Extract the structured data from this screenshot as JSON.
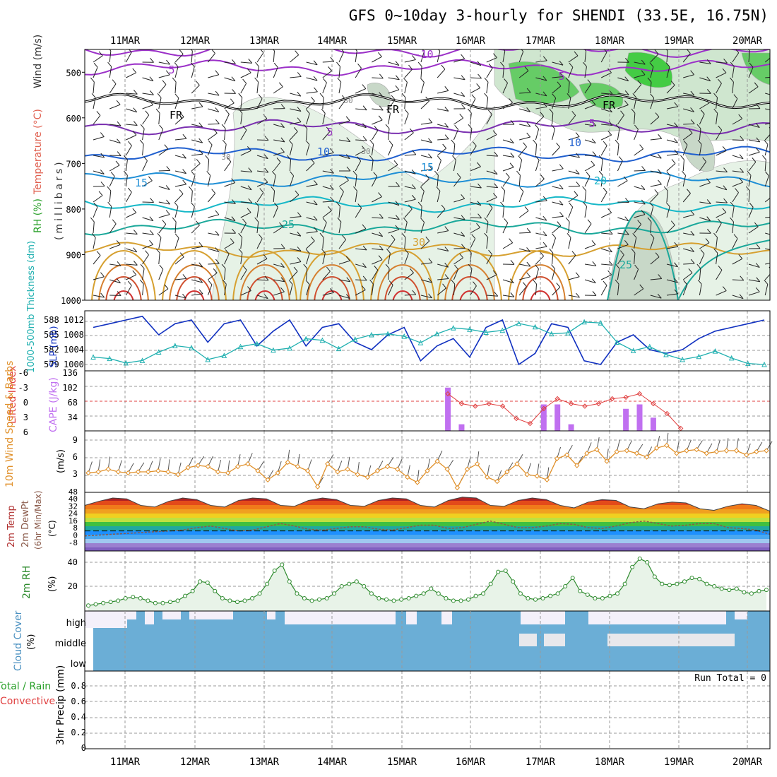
{
  "title": "GFS 0~10day 3-hourly for SHENDI (33.5E, 16.75N)",
  "dates": [
    "11MAR",
    "12MAR",
    "13MAR",
    "14MAR",
    "15MAR",
    "16MAR",
    "17MAR",
    "18MAR",
    "19MAR",
    "20MAR"
  ],
  "colors": {
    "rh_green": "#33cc33",
    "temp_red": "#e03030",
    "wind_orange": "#e0902a",
    "slp_blue": "#1030c0",
    "thick_cyan": "#20b0b0",
    "cape_purple": "#c070f0",
    "li_red": "#e04040",
    "rh2m_green": "#2e8b2e",
    "cloud_blue": "#6baed6",
    "dewpt_brown": "#8a5a4a"
  },
  "chart_data": [
    {
      "type": "heatmap",
      "panel": "upper-air",
      "ylabel_parts": [
        "RH (%)",
        "Temperature (°C)",
        "Wind (m/s)",
        "(millibars)"
      ],
      "yticks": [
        500,
        600,
        700,
        800,
        900,
        1000
      ],
      "ylim": [
        450,
        1000
      ],
      "contour_labels": [
        "-10",
        "5",
        "5",
        "FR",
        "FR",
        "FR",
        "5",
        "5",
        "10",
        "10",
        "15",
        "15",
        "20",
        "25",
        "25",
        "30",
        "30",
        "30",
        "30"
      ],
      "isotherms": [
        {
          "label": "-10",
          "p": 450
        },
        {
          "label": "-5",
          "p": 490
        },
        {
          "label": "0 (FR)",
          "p": 565
        },
        {
          "label": "5",
          "p": 620
        },
        {
          "label": "10",
          "p": 680
        },
        {
          "label": "15",
          "p": 735
        },
        {
          "label": "20",
          "p": 790
        },
        {
          "label": "25",
          "p": 840
        },
        {
          "label": "30",
          "p": 890
        }
      ]
    },
    {
      "type": "line",
      "panel": "slp-thickness",
      "ylabel_thickness": "1000-500mb Thickness (dm)",
      "ylabel_slp": "SLP (mb)",
      "thickness_ticks": [
        "588",
        "585",
        "582",
        "579"
      ],
      "slp_ticks": [
        "1012",
        "1008",
        "1004",
        "1000"
      ],
      "series": [
        {
          "name": "SLP (mb)",
          "values": [
            1010,
            1011,
            1012,
            1013,
            1008,
            1011,
            1012,
            1006,
            1011,
            1012,
            1005,
            1009,
            1012,
            1005,
            1010,
            1011,
            1006,
            1004,
            1008,
            1010,
            1001,
            1005,
            1007,
            1002,
            1010,
            1012,
            1000,
            1003,
            1011,
            1010,
            1001,
            1000,
            1006,
            1008,
            1004,
            1003,
            1004,
            1007,
            1009,
            1010,
            1011,
            1012
          ]
        },
        {
          "name": "Thickness (dm)",
          "values": [
            580.5,
            580.2,
            579.3,
            579.8,
            581.5,
            582.8,
            582.4,
            580.0,
            580.8,
            582.6,
            583.2,
            581.9,
            582.3,
            584.2,
            583.9,
            582.2,
            584.1,
            585.0,
            585.2,
            584.7,
            583.4,
            585.2,
            586.4,
            586.1,
            585.5,
            585.9,
            587.3,
            586.6,
            585.2,
            585.4,
            587.6,
            587.4,
            583.5,
            581.8,
            582.6,
            581.0,
            580.0,
            580.6,
            581.7,
            580.3,
            579.2,
            579.0
          ]
        }
      ]
    },
    {
      "type": "bar",
      "panel": "cape-li",
      "ylabel_li": "Lifted Index",
      "ylabel_cape": "CAPE (J/kg)",
      "li_ticks": [
        "-6",
        "-3",
        "0",
        "3",
        "6"
      ],
      "cape_ticks": [
        "136",
        "102",
        "68",
        "34"
      ],
      "cape_values": [
        0,
        0,
        0,
        0,
        0,
        0,
        0,
        0,
        0,
        0,
        0,
        0,
        0,
        0,
        0,
        0,
        0,
        0,
        0,
        0,
        0,
        0,
        0,
        0,
        0,
        0,
        98,
        15,
        0,
        0,
        0,
        0,
        0,
        60,
        60,
        15,
        0,
        0,
        0,
        50,
        60,
        30,
        0,
        0,
        0,
        0,
        0,
        0,
        0,
        0
      ],
      "li_values": [
        null,
        null,
        null,
        null,
        null,
        null,
        null,
        null,
        null,
        null,
        null,
        null,
        null,
        null,
        null,
        null,
        null,
        null,
        null,
        null,
        null,
        null,
        null,
        null,
        null,
        null,
        -1.5,
        0.5,
        1.0,
        0.5,
        1.0,
        3.5,
        4.5,
        1.5,
        -0.5,
        0.5,
        1.0,
        0.5,
        -0.5,
        -0.8,
        -1.5,
        0.5,
        2.5,
        5.5,
        null,
        null,
        null,
        null,
        null,
        null
      ]
    },
    {
      "type": "line",
      "panel": "wind10m",
      "ylabel": "10m Wind Speed & Barbs",
      "units": "(m/s)",
      "yticks": [
        "9",
        "6",
        "3"
      ],
      "series": [
        {
          "name": "10m Wind Speed",
          "values": [
            3.8,
            4.0,
            4.5,
            4.0,
            3.8,
            4.0,
            4.0,
            4.2,
            4.0,
            3.5,
            4.8,
            5.2,
            5.0,
            4.0,
            3.8,
            5.0,
            5.5,
            4.2,
            2.5,
            3.8,
            5.8,
            5.0,
            4.2,
            1.2,
            5.5,
            4.0,
            4.5,
            3.5,
            3.0,
            4.2,
            5.0,
            4.5,
            3.0,
            2.0,
            4.2,
            6.0,
            4.5,
            1.0,
            4.5,
            5.5,
            3.0,
            2.2,
            4.0,
            5.5,
            3.5,
            3.2,
            2.5,
            6.5,
            7.2,
            5.2,
            7.5,
            8.2,
            6.0,
            7.8,
            8.0,
            7.5,
            6.8,
            8.5,
            9.0,
            7.5,
            8.0,
            8.2,
            7.5,
            7.8,
            8.0,
            8.0,
            7.2,
            7.8,
            8.0
          ]
        }
      ]
    },
    {
      "type": "area",
      "panel": "temperature",
      "ylabel_parts": [
        "2m Temp",
        "2m DewPt",
        "(6hr Min/Max)",
        "(°C)"
      ],
      "yticks": [
        "40",
        "32",
        "24",
        "16",
        "8",
        "0",
        "-8"
      ],
      "series": [
        {
          "name": "2m Temp",
          "values": [
            31,
            36,
            40,
            39,
            31,
            29,
            36,
            40,
            38,
            31,
            29,
            37,
            40,
            39,
            31,
            30,
            37,
            40,
            38,
            31,
            30,
            37,
            40,
            39,
            31,
            29,
            37,
            41,
            40,
            31,
            30,
            37,
            40,
            38,
            31,
            28,
            35,
            38,
            37,
            29,
            27,
            33,
            35,
            34,
            27,
            25,
            30,
            33,
            31,
            24
          ]
        },
        {
          "name": "2m DewPt",
          "values": [
            -6,
            -5,
            -4,
            -3,
            -2,
            -1,
            0,
            1,
            4,
            6,
            3,
            0,
            1,
            5,
            9,
            6,
            2,
            1,
            3,
            5,
            5,
            2,
            1,
            4,
            7,
            7,
            3,
            4,
            8,
            12,
            8,
            4,
            4,
            6,
            9,
            8,
            4,
            3,
            6,
            10,
            12,
            9,
            6,
            7,
            9,
            9,
            4,
            3,
            1,
            -4
          ]
        }
      ]
    },
    {
      "type": "area",
      "panel": "rh2m",
      "ylabel": "2m RH",
      "units": "(%)",
      "yticks": [
        "40",
        "20"
      ],
      "series": [
        {
          "name": "2m RH",
          "values": [
            4,
            5,
            6,
            7,
            8,
            10,
            11,
            10,
            8,
            6,
            6,
            7,
            8,
            12,
            16,
            24,
            23,
            16,
            10,
            8,
            7,
            8,
            10,
            14,
            22,
            33,
            38,
            24,
            14,
            10,
            8,
            9,
            10,
            14,
            20,
            22,
            24,
            20,
            14,
            10,
            9,
            8,
            9,
            10,
            12,
            14,
            18,
            14,
            10,
            8,
            8,
            9,
            12,
            14,
            22,
            32,
            33,
            24,
            14,
            10,
            9,
            10,
            12,
            14,
            20,
            27,
            16,
            13,
            10,
            10,
            12,
            14,
            22,
            36,
            43,
            40,
            28,
            22,
            21,
            22,
            24,
            27,
            26,
            22,
            20,
            18,
            17,
            18,
            15,
            14,
            16,
            17
          ]
        }
      ]
    },
    {
      "type": "bar",
      "panel": "cloud-cover",
      "ylabel": "Cloud Cover (%)",
      "levels": [
        "high",
        "middle",
        "low"
      ]
    },
    {
      "type": "line",
      "panel": "precip",
      "ylabel_parts": [
        "Total / Rain",
        "Convective",
        "3hr Precip (mm)"
      ],
      "yticks": [
        "0.8",
        "0.6",
        "0.4",
        "0.2",
        "0"
      ],
      "run_total": "Run Total = 0"
    }
  ]
}
